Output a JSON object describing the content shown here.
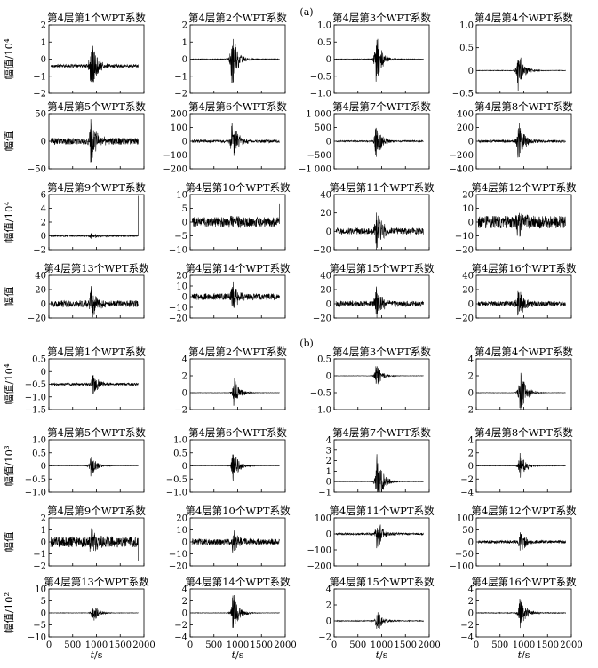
{
  "figure": {
    "panel_labels": [
      "(a)",
      "(b)"
    ],
    "x_axis": {
      "ticks": [
        "0",
        "500",
        "1000",
        "1500",
        "2000"
      ],
      "xlabel_var": "t",
      "xlabel_unit": "/s"
    }
  },
  "chart_data": [
    {
      "panel": "(a)",
      "type": "line",
      "ylabel_rows": [
        "幅值/10⁴",
        "幅值",
        "幅值/10⁴",
        "幅值"
      ],
      "xlim": [
        0,
        2000
      ],
      "subplots": [
        {
          "title": "第4层第1个WPT系数",
          "ylim": [
            -2,
            2
          ],
          "yticks": [
            "2",
            "1",
            "0",
            "−1",
            "−2"
          ],
          "baseline": -0.4,
          "amp": 1.8,
          "noise": 0.09,
          "event_t": 880
        },
        {
          "title": "第4层第2个WPT系数",
          "ylim": [
            -2,
            2
          ],
          "yticks": [
            "2",
            "1",
            "0",
            "−1",
            "−2"
          ],
          "baseline": 0,
          "amp": 1.8,
          "noise": 0.02,
          "event_t": 880
        },
        {
          "title": "第4层第3个WPT系数",
          "ylim": [
            -1,
            1
          ],
          "yticks": [
            "1.0",
            "0.5",
            "0",
            "−0.5",
            "−1.0"
          ],
          "baseline": 0,
          "amp": 0.85,
          "noise": 0.01,
          "event_t": 880
        },
        {
          "title": "第4层第4个WPT系数",
          "ylim": [
            -0.5,
            1
          ],
          "yticks": [
            "1.0",
            "0.5",
            "0",
            "−0.5"
          ],
          "baseline": 0,
          "amp": 0.5,
          "noise": 0.006,
          "event_t": 880
        },
        {
          "title": "第4层第5个WPT系数",
          "ylim": [
            -50,
            50
          ],
          "yticks": [
            "50",
            "0",
            "−50"
          ],
          "baseline": 0,
          "amp": 48,
          "noise": 6,
          "event_t": 880
        },
        {
          "title": "第4层第6个WPT系数",
          "ylim": [
            -200,
            200
          ],
          "yticks": [
            "200",
            "100",
            "0",
            "−100",
            "−200"
          ],
          "baseline": 0,
          "amp": 170,
          "noise": 10,
          "event_t": 880
        },
        {
          "title": "第4层第7个WPT系数",
          "ylim": [
            -1000,
            1000
          ],
          "yticks": [
            "1 000",
            "500",
            "0",
            "−500",
            "−1 000"
          ],
          "baseline": 0,
          "amp": 750,
          "noise": 25,
          "event_t": 880
        },
        {
          "title": "第4层第8个WPT系数",
          "ylim": [
            -400,
            400
          ],
          "yticks": [
            "400",
            "200",
            "0",
            "−200",
            "−400"
          ],
          "baseline": 0,
          "amp": 350,
          "noise": 18,
          "event_t": 880
        },
        {
          "title": "第4层第9个WPT系数",
          "ylim": [
            -2,
            6
          ],
          "yticks": [
            "6",
            "4",
            "2",
            "0",
            "−2"
          ],
          "baseline": 0,
          "amp": 0.5,
          "noise": 0.12,
          "event_t": 880,
          "end_spike": 5.8
        },
        {
          "title": "第4层第10个WPT系数",
          "ylim": [
            -10,
            10
          ],
          "yticks": [
            "10",
            "5",
            "0",
            "−5",
            "−10"
          ],
          "baseline": 0,
          "amp": 3,
          "noise": 1.8,
          "event_t": 880,
          "end_spike": 6.5
        },
        {
          "title": "第4层第11个WPT系数",
          "ylim": [
            -20,
            40
          ],
          "yticks": [
            "40",
            "20",
            "0",
            "−20"
          ],
          "baseline": 0,
          "amp": 30,
          "noise": 3.5,
          "event_t": 880
        },
        {
          "title": "第4层第12个WPT系数",
          "ylim": [
            -20,
            20
          ],
          "yticks": [
            "20",
            "10",
            "0",
            "−10",
            "−20"
          ],
          "baseline": 0,
          "amp": 12,
          "noise": 4.5,
          "event_t": 880
        },
        {
          "title": "第4层第13个WPT系数",
          "ylim": [
            -20,
            40
          ],
          "yticks": [
            "40",
            "20",
            "0",
            "−20"
          ],
          "baseline": 0,
          "amp": 25,
          "noise": 4.5,
          "event_t": 880
        },
        {
          "title": "第4层第14个WPT系数",
          "ylim": [
            -20,
            20
          ],
          "yticks": [
            "20",
            "10",
            "0",
            "−10",
            "−20"
          ],
          "baseline": 0,
          "amp": 16,
          "noise": 3,
          "event_t": 880
        },
        {
          "title": "第4层第15个WPT系数",
          "ylim": [
            -20,
            40
          ],
          "yticks": [
            "40",
            "20",
            "0",
            "−20"
          ],
          "baseline": 0,
          "amp": 25,
          "noise": 4,
          "event_t": 880
        },
        {
          "title": "第4层第16个WPT系数",
          "ylim": [
            -20,
            40
          ],
          "yticks": [
            "40",
            "20",
            "0",
            "−20"
          ],
          "baseline": 0,
          "amp": 25,
          "noise": 3.5,
          "event_t": 880
        }
      ]
    },
    {
      "panel": "(b)",
      "type": "line",
      "ylabel_rows": [
        "幅值/10⁴",
        "幅值/10³",
        "幅值",
        "幅值/10²"
      ],
      "xlim": [
        0,
        2000
      ],
      "xlabel": "t/s",
      "subplots": [
        {
          "title": "第4层第1个WPT系数",
          "ylim": [
            -1.5,
            0.5
          ],
          "yticks": [
            "0.5",
            "0",
            "−0.5",
            "−1.0",
            "−1.5"
          ],
          "baseline": -0.5,
          "amp": 0.5,
          "noise": 0.05,
          "event_t": 920
        },
        {
          "title": "第4层第2个WPT系数",
          "ylim": [
            -2,
            4
          ],
          "yticks": [
            "4",
            "2",
            "0",
            "−2"
          ],
          "baseline": 0,
          "amp": 2,
          "noise": 0.02,
          "event_t": 920
        },
        {
          "title": "第4层第3个WPT系数",
          "ylim": [
            -1,
            0.5
          ],
          "yticks": [
            "0.5",
            "0",
            "−0.5",
            "−1.0"
          ],
          "baseline": 0,
          "amp": 0.38,
          "noise": 0.005,
          "event_t": 880
        },
        {
          "title": "第4层第4个WPT系数",
          "ylim": [
            -2,
            4
          ],
          "yticks": [
            "4",
            "2",
            "0",
            "−2"
          ],
          "baseline": 0,
          "amp": 3.2,
          "noise": 0.02,
          "event_t": 920
        },
        {
          "title": "第4层第5个WPT系数",
          "ylim": [
            -1,
            1
          ],
          "yticks": [
            "1.0",
            "0.5",
            "0",
            "−0.5",
            "−1.0"
          ],
          "baseline": 0,
          "amp": 0.45,
          "noise": 0.004,
          "event_t": 880
        },
        {
          "title": "第4层第6个WPT系数",
          "ylim": [
            -1,
            1
          ],
          "yticks": [
            "1.0",
            "0.5",
            "0",
            "−0.5",
            "−1.0"
          ],
          "baseline": 0,
          "amp": 0.65,
          "noise": 0.004,
          "event_t": 900
        },
        {
          "title": "第4层第7个WPT系数",
          "ylim": [
            -1,
            4
          ],
          "yticks": [
            "4",
            "3",
            "2",
            "1",
            "0",
            "−1"
          ],
          "baseline": 0,
          "amp": 2.8,
          "noise": 0.015,
          "event_t": 900
        },
        {
          "title": "第4层第8个WPT系数",
          "ylim": [
            -4,
            4
          ],
          "yticks": [
            "4",
            "2",
            "0",
            "−2",
            "−4"
          ],
          "baseline": 0,
          "amp": 2.5,
          "noise": 0.03,
          "event_t": 920
        },
        {
          "title": "第4层第9个WPT系数",
          "ylim": [
            -2,
            2
          ],
          "yticks": [
            "2",
            "1",
            "0",
            "−1",
            "−2"
          ],
          "baseline": 0,
          "amp": 1.2,
          "noise": 0.45,
          "event_t": 880,
          "end_spike": -1.6
        },
        {
          "title": "第4层第10个WPT系数",
          "ylim": [
            -20,
            20
          ],
          "yticks": [
            "20",
            "10",
            "0",
            "−10",
            "−20"
          ],
          "baseline": 0,
          "amp": 12,
          "noise": 2.5,
          "event_t": 900
        },
        {
          "title": "第4层第11个WPT系数",
          "ylim": [
            -200,
            100
          ],
          "yticks": [
            "100",
            "0",
            "−100",
            "−200"
          ],
          "baseline": 0,
          "amp": 120,
          "noise": 6,
          "event_t": 900
        },
        {
          "title": "第4层第12个WPT系数",
          "ylim": [
            -100,
            100
          ],
          "yticks": [
            "100",
            "50",
            "0",
            "−50",
            "−100"
          ],
          "baseline": 0,
          "amp": 55,
          "noise": 6,
          "event_t": 920
        },
        {
          "title": "第4层第13个WPT系数",
          "ylim": [
            -10,
            10
          ],
          "yticks": [
            "10",
            "5",
            "0",
            "−5",
            "−10"
          ],
          "baseline": 0,
          "amp": 4.5,
          "noise": 0.08,
          "event_t": 920
        },
        {
          "title": "第4层第14个WPT系数",
          "ylim": [
            -4,
            4
          ],
          "yticks": [
            "4",
            "2",
            "0",
            "−2",
            "−4"
          ],
          "baseline": 0,
          "amp": 3.8,
          "noise": 0.04,
          "event_t": 900
        },
        {
          "title": "第4层第15个WPT系数",
          "ylim": [
            -2,
            4
          ],
          "yticks": [
            "4",
            "2",
            "0",
            "−2"
          ],
          "baseline": 0,
          "amp": 1.6,
          "noise": 0.05,
          "event_t": 900
        },
        {
          "title": "第4层第16个WPT系数",
          "ylim": [
            -4,
            4
          ],
          "yticks": [
            "4",
            "2",
            "0",
            "−2",
            "−4"
          ],
          "baseline": 0,
          "amp": 3.2,
          "noise": 0.06,
          "event_t": 920
        }
      ]
    }
  ]
}
